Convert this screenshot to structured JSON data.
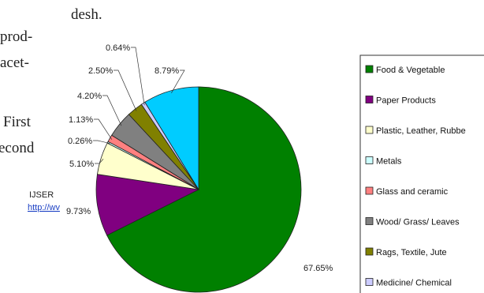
{
  "document": {
    "heading_fragment": "desh.",
    "left_fragments": [
      "prod-",
      "acet-",
      "First",
      "econd"
    ],
    "footer_journal": "IJSER",
    "footer_link": "http://wv"
  },
  "chart_data": {
    "type": "pie",
    "categories": [
      "Food & Vegetable",
      "Paper Products",
      "Plastic, Leather, Rubbe",
      "Metals",
      "Glass and ceramic",
      "Wood/ Grass/ Leaves",
      "Rags, Textile, Jute",
      "Medicine/ Chemical",
      null
    ],
    "values": [
      67.65,
      9.73,
      5.1,
      0.26,
      1.13,
      4.2,
      2.5,
      0.64,
      8.79
    ],
    "value_labels": [
      "67.65%",
      "9.73%",
      "5.10%",
      "0.26%",
      "1.13%",
      "4.20%",
      "2.50%",
      "0.64%",
      "8.79%"
    ],
    "colors": [
      "#008000",
      "#800080",
      "#ffffcc",
      "#ccffff",
      "#ff8080",
      "#808080",
      "#808000",
      "#ccccff",
      "#00ccff"
    ],
    "legend": "right"
  }
}
